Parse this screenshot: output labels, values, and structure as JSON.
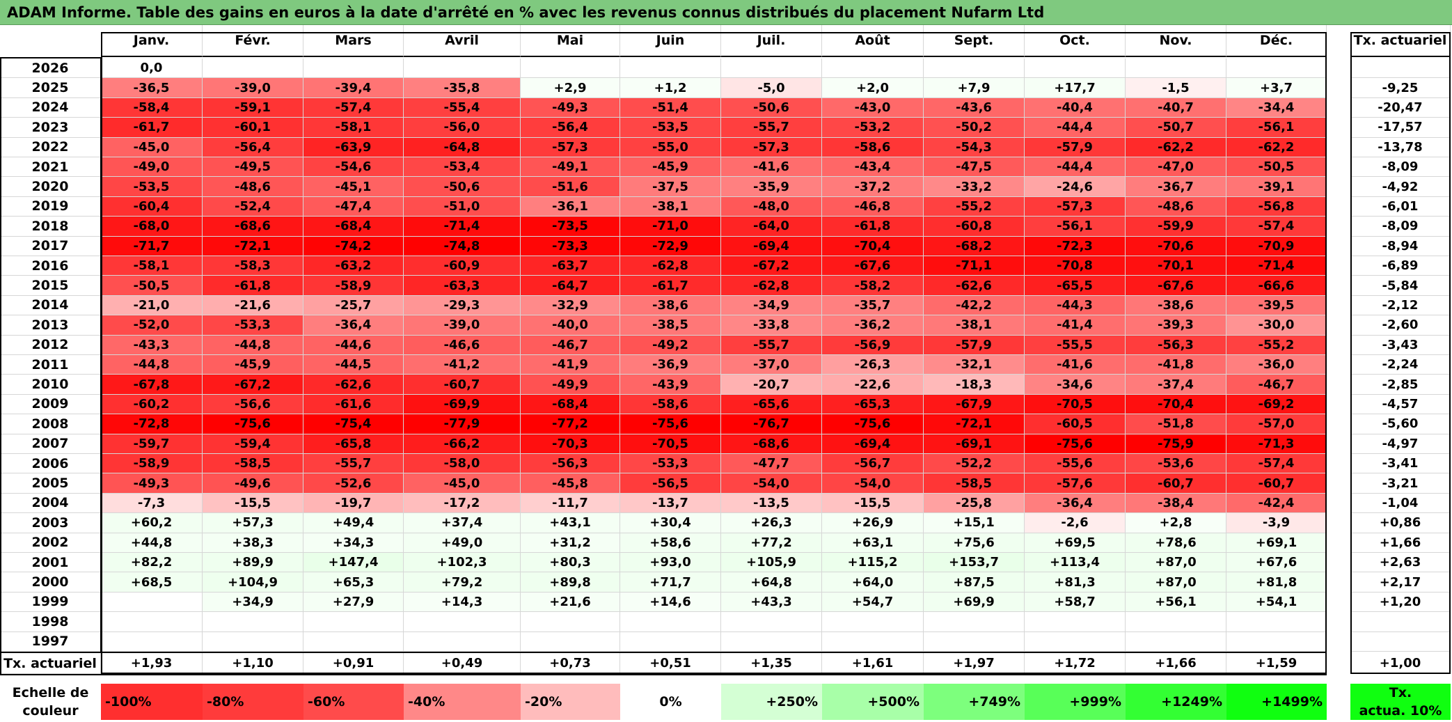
{
  "header": {
    "title": "ADAM Informe. Table des gains en euros à la date d'arrêté en % avec les revenus connus distribués du placement Nufarm Ltd"
  },
  "chart_data": {
    "type": "heatmap",
    "title": "ADAM Informe. Table des gains en euros à la date d'arrêté en % avec les revenus connus distribués du placement Nufarm Ltd",
    "columns": [
      "Janv.",
      "Févr.",
      "Mars",
      "Avril",
      "Mai",
      "Juin",
      "Juil.",
      "Août",
      "Sept.",
      "Oct.",
      "Nov.",
      "Déc."
    ],
    "annual_header": "Tx. actuariel",
    "rows": [
      {
        "year": "2026",
        "values": [
          "0,0",
          "",
          "",
          "",
          "",
          "",
          "",
          "",
          "",
          "",
          "",
          ""
        ],
        "annual": ""
      },
      {
        "year": "2025",
        "values": [
          "-36,5",
          "-39,0",
          "-39,4",
          "-35,8",
          "+2,9",
          "+1,2",
          "-5,0",
          "+2,0",
          "+7,9",
          "+17,7",
          "-1,5",
          "+3,7"
        ],
        "annual": "-9,25"
      },
      {
        "year": "2024",
        "values": [
          "-58,4",
          "-59,1",
          "-57,4",
          "-55,4",
          "-49,3",
          "-51,4",
          "-50,6",
          "-43,0",
          "-43,6",
          "-40,4",
          "-40,7",
          "-34,4"
        ],
        "annual": "-20,47"
      },
      {
        "year": "2023",
        "values": [
          "-61,7",
          "-60,1",
          "-58,1",
          "-56,0",
          "-56,4",
          "-53,5",
          "-55,7",
          "-53,2",
          "-50,2",
          "-44,4",
          "-50,7",
          "-56,1"
        ],
        "annual": "-17,57"
      },
      {
        "year": "2022",
        "values": [
          "-45,0",
          "-56,4",
          "-63,9",
          "-64,8",
          "-57,3",
          "-55,0",
          "-57,3",
          "-58,6",
          "-54,3",
          "-57,9",
          "-62,2",
          "-62,2"
        ],
        "annual": "-13,78"
      },
      {
        "year": "2021",
        "values": [
          "-49,0",
          "-49,5",
          "-54,6",
          "-53,4",
          "-49,1",
          "-45,9",
          "-41,6",
          "-43,4",
          "-47,5",
          "-44,4",
          "-47,0",
          "-50,5"
        ],
        "annual": "-8,09"
      },
      {
        "year": "2020",
        "values": [
          "-53,5",
          "-48,6",
          "-45,1",
          "-50,6",
          "-51,6",
          "-37,5",
          "-35,9",
          "-37,2",
          "-33,2",
          "-24,6",
          "-36,7",
          "-39,1"
        ],
        "annual": "-4,92"
      },
      {
        "year": "2019",
        "values": [
          "-60,4",
          "-52,4",
          "-47,4",
          "-51,0",
          "-36,1",
          "-38,1",
          "-48,0",
          "-46,8",
          "-55,2",
          "-57,3",
          "-48,6",
          "-56,8"
        ],
        "annual": "-6,01"
      },
      {
        "year": "2018",
        "values": [
          "-68,0",
          "-68,6",
          "-68,4",
          "-71,4",
          "-73,5",
          "-71,0",
          "-64,0",
          "-61,8",
          "-60,8",
          "-56,1",
          "-59,9",
          "-57,4"
        ],
        "annual": "-8,09"
      },
      {
        "year": "2017",
        "values": [
          "-71,7",
          "-72,1",
          "-74,2",
          "-74,8",
          "-73,3",
          "-72,9",
          "-69,4",
          "-70,4",
          "-68,2",
          "-72,3",
          "-70,6",
          "-70,9"
        ],
        "annual": "-8,94"
      },
      {
        "year": "2016",
        "values": [
          "-58,1",
          "-58,3",
          "-63,2",
          "-60,9",
          "-63,7",
          "-62,8",
          "-67,2",
          "-67,6",
          "-71,1",
          "-70,8",
          "-70,1",
          "-71,4"
        ],
        "annual": "-6,89"
      },
      {
        "year": "2015",
        "values": [
          "-50,5",
          "-61,8",
          "-58,9",
          "-63,3",
          "-64,7",
          "-61,7",
          "-62,8",
          "-58,2",
          "-62,6",
          "-65,5",
          "-67,6",
          "-66,6"
        ],
        "annual": "-5,84"
      },
      {
        "year": "2014",
        "values": [
          "-21,0",
          "-21,6",
          "-25,7",
          "-29,3",
          "-32,9",
          "-38,6",
          "-34,9",
          "-35,7",
          "-42,2",
          "-44,3",
          "-38,6",
          "-39,5"
        ],
        "annual": "-2,12"
      },
      {
        "year": "2013",
        "values": [
          "-52,0",
          "-53,3",
          "-36,4",
          "-39,0",
          "-40,0",
          "-38,5",
          "-33,8",
          "-36,2",
          "-38,1",
          "-41,4",
          "-39,3",
          "-30,0"
        ],
        "annual": "-2,60"
      },
      {
        "year": "2012",
        "values": [
          "-43,3",
          "-44,8",
          "-44,6",
          "-46,6",
          "-46,7",
          "-49,2",
          "-55,7",
          "-56,9",
          "-57,9",
          "-55,5",
          "-56,3",
          "-55,2"
        ],
        "annual": "-3,43"
      },
      {
        "year": "2011",
        "values": [
          "-44,8",
          "-45,9",
          "-44,5",
          "-41,2",
          "-41,9",
          "-36,9",
          "-37,0",
          "-26,3",
          "-32,1",
          "-41,6",
          "-41,8",
          "-36,0"
        ],
        "annual": "-2,24"
      },
      {
        "year": "2010",
        "values": [
          "-67,8",
          "-67,2",
          "-62,6",
          "-60,7",
          "-49,9",
          "-43,9",
          "-20,7",
          "-22,6",
          "-18,3",
          "-34,6",
          "-37,4",
          "-46,7"
        ],
        "annual": "-2,85"
      },
      {
        "year": "2009",
        "values": [
          "-60,2",
          "-56,6",
          "-61,6",
          "-69,9",
          "-68,4",
          "-58,6",
          "-65,6",
          "-65,3",
          "-67,9",
          "-70,5",
          "-70,4",
          "-69,2"
        ],
        "annual": "-4,57"
      },
      {
        "year": "2008",
        "values": [
          "-72,8",
          "-75,6",
          "-75,4",
          "-77,9",
          "-77,2",
          "-75,6",
          "-76,7",
          "-75,6",
          "-72,1",
          "-60,5",
          "-51,8",
          "-57,0"
        ],
        "annual": "-5,60"
      },
      {
        "year": "2007",
        "values": [
          "-59,7",
          "-59,4",
          "-65,8",
          "-66,2",
          "-70,3",
          "-70,5",
          "-68,6",
          "-69,4",
          "-69,1",
          "-75,6",
          "-75,9",
          "-71,3"
        ],
        "annual": "-4,97"
      },
      {
        "year": "2006",
        "values": [
          "-58,9",
          "-58,5",
          "-55,7",
          "-58,0",
          "-56,3",
          "-53,3",
          "-47,7",
          "-56,7",
          "-52,2",
          "-55,6",
          "-53,6",
          "-57,4"
        ],
        "annual": "-3,41"
      },
      {
        "year": "2005",
        "values": [
          "-49,3",
          "-49,6",
          "-52,6",
          "-45,0",
          "-45,8",
          "-56,5",
          "-54,0",
          "-54,0",
          "-58,5",
          "-57,6",
          "-60,7",
          "-60,7"
        ],
        "annual": "-3,21"
      },
      {
        "year": "2004",
        "values": [
          "-7,3",
          "-15,5",
          "-19,7",
          "-17,2",
          "-11,7",
          "-13,7",
          "-13,5",
          "-15,5",
          "-25,8",
          "-36,4",
          "-38,4",
          "-42,4"
        ],
        "annual": "-1,04"
      },
      {
        "year": "2003",
        "values": [
          "+60,2",
          "+57,3",
          "+49,4",
          "+37,4",
          "+43,1",
          "+30,4",
          "+26,3",
          "+26,9",
          "+15,1",
          "-2,6",
          "+2,8",
          "-3,9"
        ],
        "annual": "+0,86"
      },
      {
        "year": "2002",
        "values": [
          "+44,8",
          "+38,3",
          "+34,3",
          "+49,0",
          "+31,2",
          "+58,6",
          "+77,2",
          "+63,1",
          "+75,6",
          "+69,5",
          "+78,6",
          "+69,1"
        ],
        "annual": "+1,66"
      },
      {
        "year": "2001",
        "values": [
          "+82,2",
          "+89,9",
          "+147,4",
          "+102,3",
          "+80,3",
          "+93,0",
          "+105,9",
          "+115,2",
          "+153,7",
          "+113,4",
          "+87,0",
          "+67,6"
        ],
        "annual": "+2,63"
      },
      {
        "year": "2000",
        "values": [
          "+68,5",
          "+104,9",
          "+65,3",
          "+79,2",
          "+89,8",
          "+71,7",
          "+64,8",
          "+64,0",
          "+87,5",
          "+81,3",
          "+87,0",
          "+81,8"
        ],
        "annual": "+2,17"
      },
      {
        "year": "1999",
        "values": [
          "",
          "+34,9",
          "+27,9",
          "+14,3",
          "+21,6",
          "+14,6",
          "+43,3",
          "+54,7",
          "+69,9",
          "+58,7",
          "+56,1",
          "+54,1"
        ],
        "annual": "+1,20"
      },
      {
        "year": "1998",
        "values": [
          "",
          "",
          "",
          "",
          "",
          "",
          "",
          "",
          "",
          "",
          "",
          ""
        ],
        "annual": ""
      },
      {
        "year": "1997",
        "values": [
          "",
          "",
          "",
          "",
          "",
          "",
          "",
          "",
          "",
          "",
          "",
          ""
        ],
        "annual": ""
      }
    ],
    "footer": {
      "label": "Tx. actuariel",
      "values": [
        "+1,93",
        "+1,10",
        "+0,91",
        "+0,49",
        "+0,73",
        "+0,51",
        "+1,35",
        "+1,61",
        "+1,97",
        "+1,72",
        "+1,66",
        "+1,59"
      ],
      "annual": "+1,00"
    },
    "color_scale": {
      "label_line1": "Echelle de",
      "label_line2": "couleur",
      "stops": [
        {
          "label": "-100%",
          "color": "#ff2f2f"
        },
        {
          "label": "-80%",
          "color": "#ff3b3b"
        },
        {
          "label": "-60%",
          "color": "#ff4b4b"
        },
        {
          "label": "-40%",
          "color": "#ff8888"
        },
        {
          "label": "-20%",
          "color": "#ffbcbc"
        },
        {
          "label": "0%",
          "color": "#ffffff"
        },
        {
          "label": "+250%",
          "color": "#d4ffd4"
        },
        {
          "label": "+500%",
          "color": "#a8ffa8"
        },
        {
          "label": "+749%",
          "color": "#7dff7d"
        },
        {
          "label": "+999%",
          "color": "#58ff58"
        },
        {
          "label": "+1249%",
          "color": "#33ff33"
        },
        {
          "label": "+1499%",
          "color": "#10ff10"
        }
      ],
      "annual_label_line1": "Tx.",
      "annual_label_line2": "actua. 10%",
      "annual_color": "#10ff10"
    }
  }
}
